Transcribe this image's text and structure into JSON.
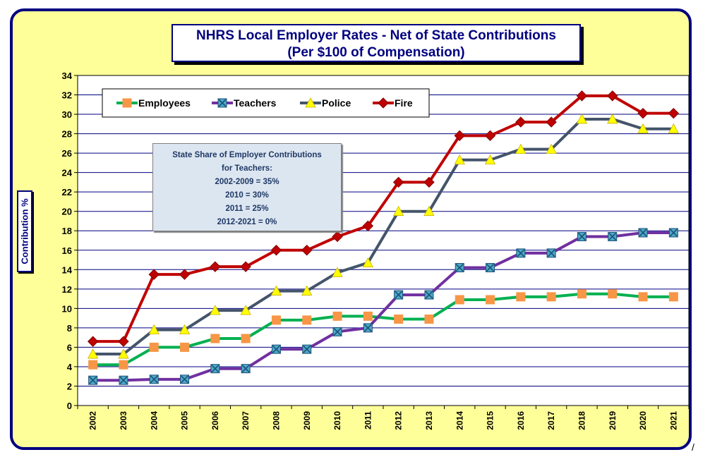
{
  "chart_data": {
    "type": "line",
    "title": "NHRS Local Employer Rates - Net of State Contributions",
    "subtitle": "(Per $100 of Compensation)",
    "ylabel": "Contribution %",
    "xlabel": "",
    "ylim": [
      0,
      34
    ],
    "y_ticks": [
      0,
      2,
      4,
      6,
      8,
      10,
      12,
      14,
      16,
      18,
      20,
      22,
      24,
      26,
      28,
      30,
      32,
      34
    ],
    "grid": true,
    "legend_position": "top-left",
    "x": [
      "2002",
      "2003",
      "2004",
      "2005",
      "2006",
      "2007",
      "2008",
      "2009",
      "2010",
      "2011",
      "2012",
      "2013",
      "2014",
      "2015",
      "2016",
      "2017",
      "2018",
      "2019",
      "2020",
      "2021"
    ],
    "series": [
      {
        "name": "Employees",
        "color": "#00b050",
        "marker": "square",
        "marker_color": "#f79646",
        "values": [
          4.2,
          4.2,
          6.0,
          6.0,
          6.9,
          6.9,
          8.8,
          8.8,
          9.2,
          9.2,
          8.9,
          8.9,
          10.9,
          10.9,
          11.2,
          11.2,
          11.5,
          11.5,
          11.2,
          11.2
        ]
      },
      {
        "name": "Teachers",
        "color": "#7030a0",
        "marker": "x-square",
        "marker_color": "#4bacc6",
        "values": [
          2.6,
          2.6,
          2.7,
          2.7,
          3.8,
          3.8,
          5.8,
          5.8,
          7.6,
          8.0,
          11.4,
          11.4,
          14.2,
          14.2,
          15.7,
          15.7,
          17.4,
          17.4,
          17.8,
          17.8
        ]
      },
      {
        "name": "Police",
        "color": "#44546a",
        "marker": "triangle",
        "marker_color": "#ffff00",
        "values": [
          5.3,
          5.3,
          7.8,
          7.8,
          9.8,
          9.8,
          11.8,
          11.8,
          13.7,
          14.7,
          20.0,
          20.0,
          25.3,
          25.3,
          26.4,
          26.4,
          29.5,
          29.5,
          28.5,
          28.5
        ]
      },
      {
        "name": "Fire",
        "color": "#c00000",
        "marker": "diamond",
        "marker_color": "#c00000",
        "values": [
          6.6,
          6.6,
          13.5,
          13.5,
          14.3,
          14.3,
          16.0,
          16.0,
          17.4,
          18.5,
          23.0,
          23.0,
          27.8,
          27.8,
          29.2,
          29.2,
          31.9,
          31.9,
          30.1,
          30.1
        ]
      }
    ],
    "annotation": {
      "lines": [
        "State Share of Employer Contributions",
        "for Teachers:",
        "2002-2009 = 35%",
        "2010 = 30%",
        "2011 = 25%",
        "2012-2021 = 0%"
      ]
    }
  },
  "trailing_mark": "/"
}
